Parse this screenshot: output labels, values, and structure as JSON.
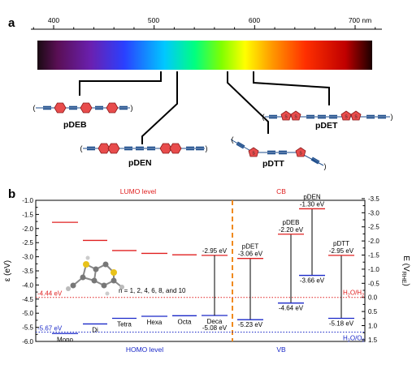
{
  "panel_a": {
    "letter": "a",
    "wavelength_ticks": [
      {
        "value": 400,
        "label": "400"
      },
      {
        "value": 500,
        "label": "500"
      },
      {
        "value": 600,
        "label": "600"
      },
      {
        "value": 700,
        "label": "700 nm"
      }
    ],
    "polymers": [
      {
        "name": "pDEB"
      },
      {
        "name": "pDEN"
      },
      {
        "name": "pDTT"
      },
      {
        "name": "pDET"
      }
    ],
    "colors": {
      "ring": "#e84c4c",
      "triple": "#1f4e8c",
      "thiophene_s": "#e8c21a"
    }
  },
  "panel_b": {
    "letter": "b",
    "left_axis_label": "ε (eV)",
    "right_axis_label_main": "E (V",
    "right_axis_label_sub": "RHE",
    "right_axis_label_end": ")",
    "left_ticks": [
      "-1.0",
      "-1.5",
      "-2.0",
      "-2.5",
      "-3.0",
      "-3.5",
      "-4.0",
      "-4.5",
      "-5.0",
      "-5.5",
      "-6.0"
    ],
    "right_ticks": [
      "-3.5",
      "-3.0",
      "-2.5",
      "-2.0",
      "-1.5",
      "-1.0",
      "-0.5",
      "0.0",
      "0.5",
      "1.0",
      "1.5"
    ],
    "lumo_title": "LUMO level",
    "homo_title": "HOMO level",
    "cb_title": "CB",
    "vb_title": "VB",
    "lumo_ref_label": "-4.44 eV",
    "homo_ref_label": "-5.67 eV",
    "h2_label": "H",
    "h2_sub": "2",
    "h2_mid": "O/H",
    "h2_sub2": "2",
    "o2_label": "H",
    "o2_sub": "2",
    "o2_mid": "O/O",
    "o2_sub2": "2",
    "n_series_label": "n = 1, 2, 4, 6, 8, and 10",
    "colors": {
      "lumo": "#e02020",
      "homo": "#1a28c8",
      "divider": "#f08a1e",
      "text": "#000000"
    }
  },
  "chart_data": {
    "type": "energy-level diagram",
    "ylabel": "ε (eV)",
    "ylim": [
      -6.0,
      -1.0
    ],
    "right_ylabel": "E (V RHE)",
    "oligomers": [
      {
        "label": "Mono",
        "lumo": -1.78,
        "homo": -5.72
      },
      {
        "label": "Di",
        "lumo": -2.42,
        "homo": -5.38
      },
      {
        "label": "Tetra",
        "lumo": -2.78,
        "homo": -5.18
      },
      {
        "label": "Hexa",
        "lumo": -2.88,
        "homo": -5.11
      },
      {
        "label": "Octa",
        "lumo": -2.93,
        "homo": -5.09
      },
      {
        "label": "Deca",
        "lumo": -2.95,
        "homo": -5.08,
        "lumo_label": "-2.95 eV",
        "homo_label": "-5.08 eV"
      }
    ],
    "polymers": [
      {
        "label": "pDET",
        "cb": -3.06,
        "vb": -5.23,
        "cb_label": "-3.06 eV",
        "vb_label": "-5.23 eV"
      },
      {
        "label": "pDEB",
        "cb": -2.2,
        "vb": -4.64,
        "cb_label": "-2.20 eV",
        "vb_label": "-4.64 eV"
      },
      {
        "label": "pDEN",
        "cb": -1.3,
        "vb": -3.66,
        "cb_label": "-1.30 eV",
        "vb_label": "-3.66 eV"
      },
      {
        "label": "pDTT",
        "cb": -2.95,
        "vb": -5.18,
        "cb_label": "-2.95 eV",
        "vb_label": "-5.18 eV"
      }
    ],
    "reference_levels": [
      {
        "value": -4.44,
        "label": "-4.44 eV"
      },
      {
        "value": -5.67,
        "label": "-5.67 eV"
      }
    ]
  }
}
